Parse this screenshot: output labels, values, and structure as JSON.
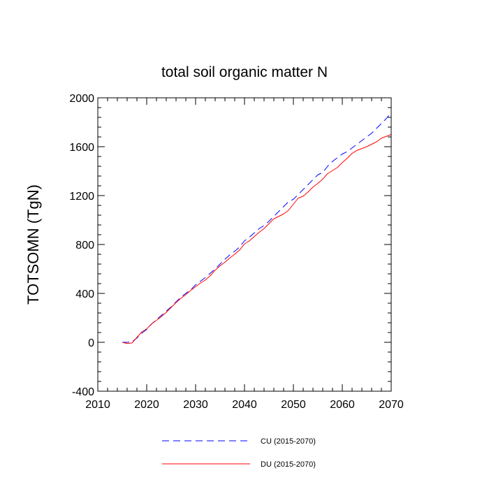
{
  "chart_data": {
    "type": "line",
    "title": "total soil organic matter N",
    "xlabel": "",
    "ylabel": "TOTSOMN  (TgN)",
    "xlim": [
      2010,
      2070
    ],
    "ylim": [
      -400,
      2000
    ],
    "xticks": [
      2010,
      2020,
      2030,
      2040,
      2050,
      2060,
      2070
    ],
    "yticks": [
      -400,
      0,
      400,
      800,
      1200,
      1600,
      2000
    ],
    "x_minor_step": 2,
    "y_minor_step": 80,
    "legend_position": "bottom-center",
    "series": [
      {
        "name": "CU (2015-2070)",
        "color": "#0000ff",
        "dash": "dashed",
        "x": [
          2015,
          2016,
          2017,
          2018,
          2019,
          2020,
          2021,
          2022,
          2023,
          2024,
          2025,
          2026,
          2027,
          2028,
          2029,
          2030,
          2031,
          2032,
          2033,
          2034,
          2035,
          2036,
          2037,
          2038,
          2039,
          2040,
          2041,
          2042,
          2043,
          2044,
          2045,
          2046,
          2047,
          2048,
          2049,
          2050,
          2051,
          2052,
          2053,
          2054,
          2055,
          2056,
          2057,
          2058,
          2059,
          2060,
          2061,
          2062,
          2063,
          2064,
          2065,
          2066,
          2067,
          2068,
          2069,
          2070
        ],
        "values": [
          0,
          0,
          5,
          35,
          75,
          105,
          150,
          185,
          220,
          255,
          290,
          330,
          370,
          400,
          430,
          470,
          500,
          530,
          565,
          600,
          640,
          680,
          715,
          745,
          780,
          830,
          860,
          895,
          930,
          955,
          990,
          1030,
          1070,
          1110,
          1150,
          1170,
          1210,
          1250,
          1290,
          1330,
          1370,
          1390,
          1440,
          1480,
          1510,
          1540,
          1560,
          1590,
          1620,
          1650,
          1680,
          1710,
          1750,
          1790,
          1830,
          1880
        ]
      },
      {
        "name": "DU (2015-2070)",
        "color": "#ff0000",
        "dash": "solid",
        "x": [
          2015,
          2016,
          2017,
          2018,
          2019,
          2020,
          2021,
          2022,
          2023,
          2024,
          2025,
          2026,
          2027,
          2028,
          2029,
          2030,
          2031,
          2032,
          2033,
          2034,
          2035,
          2036,
          2037,
          2038,
          2039,
          2040,
          2041,
          2042,
          2043,
          2044,
          2045,
          2046,
          2047,
          2048,
          2049,
          2050,
          2051,
          2052,
          2053,
          2054,
          2055,
          2056,
          2057,
          2058,
          2059,
          2060,
          2061,
          2062,
          2063,
          2064,
          2065,
          2066,
          2067,
          2068,
          2069,
          2070
        ],
        "values": [
          0,
          -10,
          -5,
          40,
          85,
          110,
          150,
          180,
          210,
          245,
          285,
          325,
          360,
          390,
          425,
          455,
          485,
          510,
          545,
          590,
          625,
          655,
          690,
          720,
          755,
          805,
          830,
          865,
          900,
          930,
          970,
          1010,
          1030,
          1050,
          1080,
          1130,
          1180,
          1195,
          1230,
          1270,
          1300,
          1335,
          1380,
          1405,
          1430,
          1470,
          1505,
          1545,
          1570,
          1585,
          1600,
          1620,
          1640,
          1670,
          1685,
          1700
        ]
      }
    ]
  }
}
